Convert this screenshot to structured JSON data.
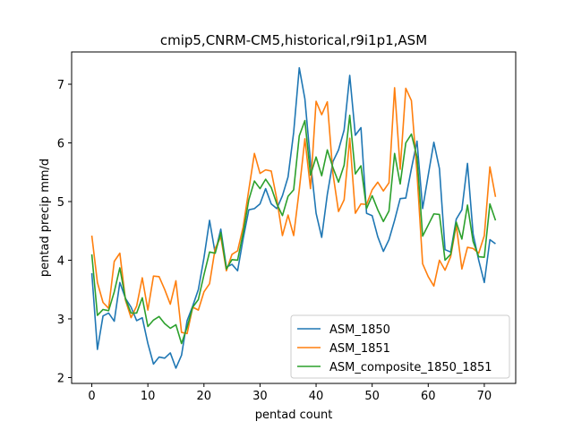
{
  "chart_data": {
    "type": "line",
    "title": "cmip5,CNRM-CM5,historical,r9i1p1,ASM",
    "xlabel": "pentad count",
    "ylabel": "pentad precip mm/d",
    "xlim": [
      -3.6,
      75.6
    ],
    "ylim": [
      1.9,
      7.55
    ],
    "xticks": [
      0,
      10,
      20,
      30,
      40,
      50,
      60,
      70
    ],
    "yticks": [
      2,
      3,
      4,
      5,
      6,
      7
    ],
    "grid": false,
    "legend_position": "lower-right",
    "x_start": 0,
    "series": [
      {
        "name": "ASM_1850",
        "color": "#1f77b4",
        "values": [
          3.78,
          2.48,
          3.05,
          3.1,
          2.96,
          3.62,
          3.35,
          3.2,
          2.97,
          3.02,
          2.58,
          2.23,
          2.35,
          2.33,
          2.42,
          2.16,
          2.38,
          2.97,
          3.22,
          3.5,
          4.04,
          4.68,
          4.12,
          4.53,
          3.88,
          3.93,
          3.82,
          4.37,
          4.86,
          4.88,
          4.96,
          5.22,
          4.96,
          4.88,
          5.1,
          5.42,
          6.18,
          7.28,
          6.75,
          5.68,
          4.8,
          4.39,
          5.12,
          5.68,
          5.88,
          6.22,
          7.15,
          6.13,
          6.26,
          4.8,
          4.76,
          4.4,
          4.15,
          4.35,
          4.68,
          5.05,
          5.06,
          5.56,
          6.03,
          4.88,
          5.45,
          6.01,
          5.56,
          4.18,
          4.14,
          4.7,
          4.86,
          5.65,
          4.45,
          4.0,
          3.62,
          4.35,
          4.28
        ]
      },
      {
        "name": "ASM_1851",
        "color": "#ff7f0e",
        "values": [
          4.42,
          3.62,
          3.28,
          3.18,
          3.98,
          4.12,
          3.32,
          3.02,
          3.22,
          3.7,
          3.15,
          3.73,
          3.72,
          3.5,
          3.25,
          3.65,
          2.77,
          2.75,
          3.2,
          3.15,
          3.46,
          3.6,
          4.2,
          4.4,
          3.82,
          4.1,
          4.16,
          4.57,
          5.2,
          5.82,
          5.48,
          5.54,
          5.52,
          5.04,
          4.42,
          4.77,
          4.42,
          5.2,
          6.07,
          5.22,
          6.71,
          6.48,
          6.7,
          5.48,
          4.83,
          5.03,
          6.08,
          4.8,
          4.96,
          4.95,
          5.2,
          5.33,
          5.18,
          5.32,
          6.94,
          5.55,
          6.93,
          6.72,
          5.48,
          3.94,
          3.72,
          3.56,
          4.0,
          3.83,
          4.06,
          4.6,
          3.85,
          4.22,
          4.2,
          4.12,
          4.42,
          5.59,
          5.08
        ]
      },
      {
        "name": "ASM_composite_1850_1851",
        "color": "#2ca02c",
        "values": [
          4.1,
          3.06,
          3.16,
          3.14,
          3.46,
          3.87,
          3.34,
          3.1,
          3.1,
          3.36,
          2.87,
          2.98,
          3.04,
          2.92,
          2.84,
          2.9,
          2.58,
          2.86,
          3.2,
          3.33,
          3.75,
          4.14,
          4.12,
          4.47,
          3.85,
          4.01,
          4.0,
          4.47,
          5.03,
          5.35,
          5.22,
          5.38,
          5.24,
          4.96,
          4.76,
          5.09,
          5.2,
          6.12,
          6.38,
          5.45,
          5.76,
          5.44,
          5.88,
          5.58,
          5.33,
          5.62,
          6.47,
          5.47,
          5.61,
          4.88,
          5.1,
          4.86,
          4.66,
          4.84,
          5.82,
          5.3,
          6.0,
          6.15,
          5.76,
          4.41,
          4.6,
          4.79,
          4.78,
          4.0,
          4.1,
          4.65,
          4.36,
          4.94,
          4.32,
          4.06,
          4.05,
          4.96,
          4.68
        ]
      }
    ]
  }
}
